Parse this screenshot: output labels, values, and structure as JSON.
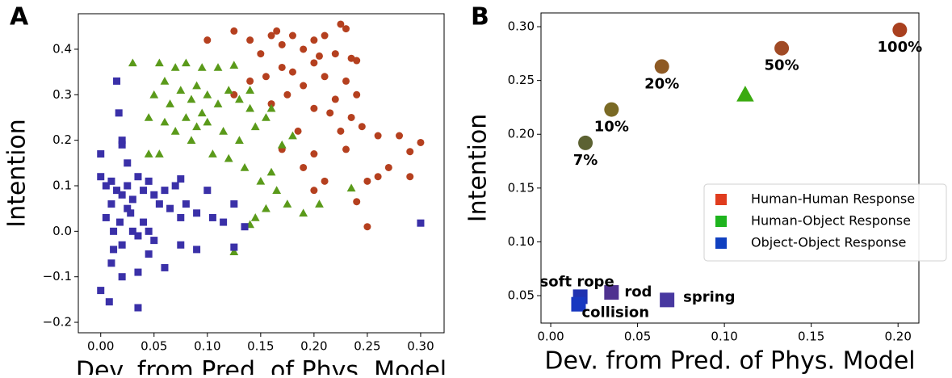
{
  "chart_data": [
    {
      "type": "scatter",
      "panel_label": "A",
      "xlabel": "Dev. from Pred. of Phys. Model",
      "ylabel": "Intention",
      "xlim": [
        -0.021,
        0.322
      ],
      "ylim": [
        -0.223,
        0.478
      ],
      "xticks": [
        {
          "value": 0,
          "label": "0.00"
        },
        {
          "value": 0.05,
          "label": "0.05"
        },
        {
          "value": 0.1,
          "label": "0.10"
        },
        {
          "value": 0.15,
          "label": "0.15"
        },
        {
          "value": 0.2,
          "label": "0.20"
        },
        {
          "value": 0.25,
          "label": "0.25"
        },
        {
          "value": 0.3,
          "label": "0.30"
        }
      ],
      "yticks": [
        {
          "value": -0.2,
          "label": "−0.2"
        },
        {
          "value": -0.1,
          "label": "−0.1"
        },
        {
          "value": 0,
          "label": "0.0"
        },
        0.1,
        0.2,
        0.3,
        0.4
      ],
      "series": [
        {
          "marker": "circle",
          "color": "#b5401f",
          "x": [
            0.1,
            0.125,
            0.14,
            0.15,
            0.16,
            0.165,
            0.17,
            0.18,
            0.19,
            0.2,
            0.21,
            0.225,
            0.23,
            0.24,
            0.22,
            0.2,
            0.21,
            0.23,
            0.24,
            0.19,
            0.18,
            0.17,
            0.155,
            0.14,
            0.125,
            0.16,
            0.175,
            0.2,
            0.22,
            0.235,
            0.245,
            0.26,
            0.28,
            0.3,
            0.29,
            0.27,
            0.29,
            0.26,
            0.25,
            0.24,
            0.25,
            0.21,
            0.2,
            0.23,
            0.185,
            0.215,
            0.225,
            0.2,
            0.19,
            0.17,
            0.235,
            0.205
          ],
          "values": [
            0.42,
            0.44,
            0.42,
            0.39,
            0.43,
            0.44,
            0.41,
            0.43,
            0.4,
            0.42,
            0.43,
            0.455,
            0.445,
            0.375,
            0.39,
            0.37,
            0.34,
            0.33,
            0.3,
            0.32,
            0.35,
            0.36,
            0.34,
            0.33,
            0.3,
            0.28,
            0.3,
            0.27,
            0.29,
            0.25,
            0.23,
            0.21,
            0.21,
            0.195,
            0.175,
            0.14,
            0.12,
            0.12,
            0.11,
            0.065,
            0.01,
            0.11,
            0.17,
            0.18,
            0.22,
            0.26,
            0.22,
            0.09,
            0.14,
            0.18,
            0.38,
            0.385
          ]
        },
        {
          "marker": "triangle",
          "color": "#5a9a1a",
          "x": [
            0.03,
            0.055,
            0.07,
            0.08,
            0.095,
            0.11,
            0.125,
            0.05,
            0.06,
            0.065,
            0.075,
            0.085,
            0.09,
            0.1,
            0.11,
            0.12,
            0.13,
            0.14,
            0.06,
            0.07,
            0.08,
            0.09,
            0.1,
            0.115,
            0.13,
            0.145,
            0.155,
            0.045,
            0.055,
            0.045,
            0.085,
            0.105,
            0.12,
            0.135,
            0.15,
            0.16,
            0.165,
            0.175,
            0.155,
            0.145,
            0.14,
            0.125,
            0.19,
            0.205,
            0.235,
            0.17,
            0.18,
            0.14,
            0.16,
            0.095
          ],
          "values": [
            0.37,
            0.37,
            0.36,
            0.37,
            0.36,
            0.36,
            0.365,
            0.3,
            0.33,
            0.28,
            0.31,
            0.29,
            0.32,
            0.3,
            0.28,
            0.31,
            0.29,
            0.27,
            0.24,
            0.22,
            0.25,
            0.23,
            0.24,
            0.22,
            0.2,
            0.23,
            0.25,
            0.25,
            0.17,
            0.17,
            0.2,
            0.17,
            0.16,
            0.14,
            0.11,
            0.13,
            0.09,
            0.06,
            0.05,
            0.03,
            0.015,
            -0.045,
            0.04,
            0.06,
            0.095,
            0.19,
            0.21,
            0.31,
            0.27,
            0.26
          ]
        },
        {
          "marker": "square",
          "color": "#3a30a8",
          "x": [
            0.0,
            0.015,
            0.017,
            0.02,
            0.02,
            0.025,
            0.0,
            0.005,
            0.01,
            0.015,
            0.02,
            0.025,
            0.03,
            0.035,
            0.04,
            0.045,
            0.05,
            0.055,
            0.06,
            0.065,
            0.07,
            0.075,
            0.08,
            0.09,
            0.1,
            0.105,
            0.115,
            0.125,
            0.135,
            0.125,
            0.09,
            0.06,
            0.045,
            0.035,
            0.02,
            0.01,
            0.0,
            0.008,
            0.035,
            0.005,
            0.012,
            0.018,
            0.028,
            0.035,
            0.04,
            0.05,
            0.075,
            0.3,
            0.075,
            0.01,
            0.03,
            0.02,
            0.012,
            0.025,
            0.045
          ],
          "values": [
            0.17,
            0.33,
            0.26,
            0.2,
            0.19,
            0.15,
            0.12,
            0.1,
            0.11,
            0.09,
            0.08,
            0.1,
            0.07,
            0.12,
            0.09,
            0.11,
            0.08,
            0.06,
            0.09,
            0.05,
            0.1,
            0.03,
            0.06,
            0.04,
            0.09,
            0.03,
            0.02,
            0.06,
            0.01,
            -0.035,
            -0.04,
            -0.08,
            -0.05,
            -0.09,
            -0.1,
            -0.07,
            -0.13,
            -0.155,
            -0.168,
            0.03,
            0.0,
            0.02,
            0.04,
            -0.01,
            0.02,
            -0.02,
            -0.03,
            0.018,
            0.115,
            0.06,
            0.0,
            -0.03,
            -0.04,
            0.05,
            0.0
          ]
        }
      ]
    },
    {
      "type": "scatter",
      "panel_label": "B",
      "xlabel": "Dev. from Pred. of Phys. Model",
      "ylabel": "Intention",
      "xlim": [
        -0.0056,
        0.212
      ],
      "ylim": [
        0.0245,
        0.3128
      ],
      "xticks": [
        {
          "value": 0,
          "label": "0.00"
        },
        0.05,
        {
          "value": 0.1,
          "label": "0.10"
        },
        0.15,
        {
          "value": 0.2,
          "label": "0.20"
        }
      ],
      "yticks": [
        0.05,
        {
          "value": 0.1,
          "label": "0.10"
        },
        0.15,
        {
          "value": 0.2,
          "label": "0.20"
        },
        0.25,
        {
          "value": 0.3,
          "label": "0.30"
        }
      ],
      "legend": "lower right",
      "series": [
        {
          "name": "Human-Human Response",
          "marker": "circle",
          "color": "#e03c1e",
          "x": [
            0.02,
            0.035,
            0.064,
            0.133,
            0.201
          ],
          "values": [
            0.192,
            0.223,
            0.263,
            0.28,
            0.297
          ],
          "point_colors": [
            "#5c6232",
            "#7a6a25",
            "#8e5a24",
            "#a04a25",
            "#a9401f"
          ],
          "labels": [
            "7%",
            "10%",
            "20%",
            "50%",
            "100%"
          ]
        },
        {
          "name": "Human-Object Response",
          "marker": "triangle",
          "color": "#1eb41e",
          "x": [
            0.112
          ],
          "values": [
            0.237
          ],
          "point_colors": [
            "#3aaa10"
          ]
        },
        {
          "name": "Object-Object Response",
          "marker": "square",
          "color": "#1040c0",
          "x": [
            0.017,
            0.016,
            0.035,
            0.067
          ],
          "values": [
            0.049,
            0.042,
            0.053,
            0.046
          ],
          "point_colors": [
            "#2032b0",
            "#1838c0",
            "#4f3290",
            "#4838a0"
          ],
          "labels": [
            "soft rope",
            "collision",
            "rod",
            "spring"
          ]
        }
      ]
    }
  ]
}
